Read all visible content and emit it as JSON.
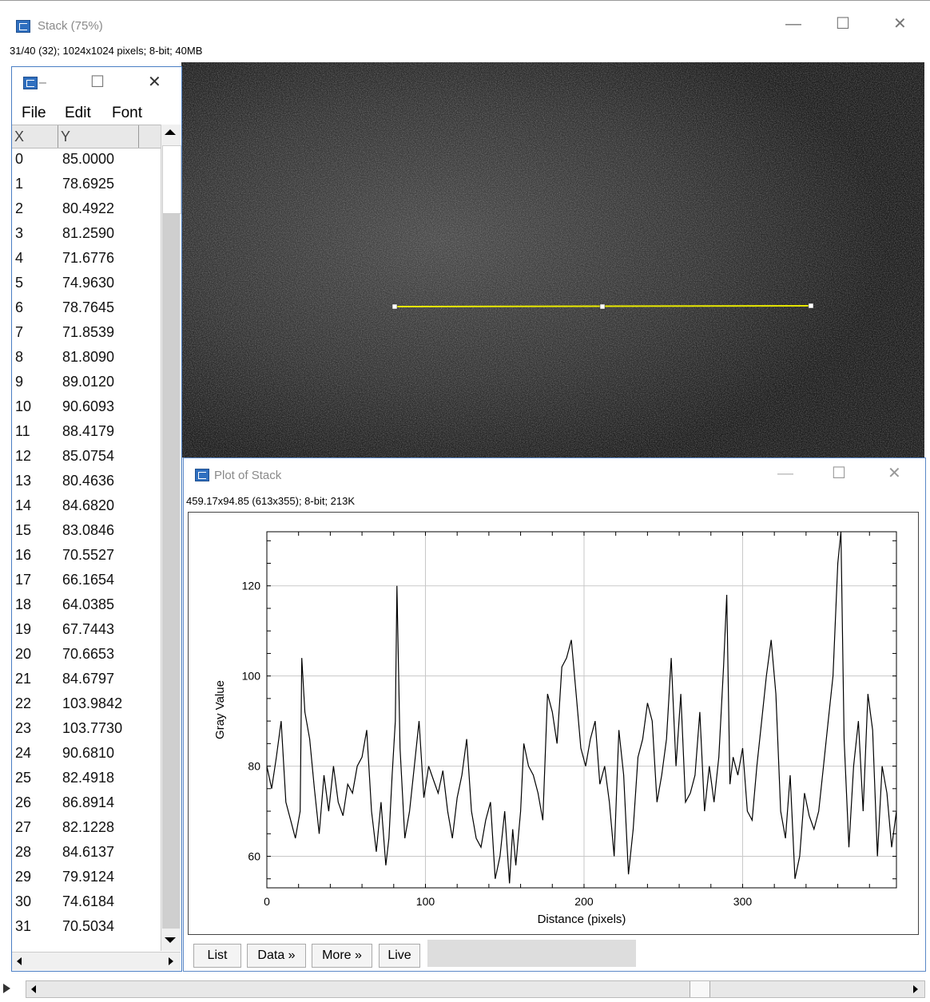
{
  "main_window": {
    "title": "Stack (75%)",
    "info": "31/40 (32); 1024x1024 pixels; 8-bit; 40MB"
  },
  "results_table": {
    "menu": [
      "File",
      "Edit",
      "Font"
    ],
    "columns": [
      "X",
      "Y"
    ],
    "rows": [
      [
        "0",
        "85.0000"
      ],
      [
        "1",
        "78.6925"
      ],
      [
        "2",
        "80.4922"
      ],
      [
        "3",
        "81.2590"
      ],
      [
        "4",
        "71.6776"
      ],
      [
        "5",
        "74.9630"
      ],
      [
        "6",
        "78.7645"
      ],
      [
        "7",
        "71.8539"
      ],
      [
        "8",
        "81.8090"
      ],
      [
        "9",
        "89.0120"
      ],
      [
        "10",
        "90.6093"
      ],
      [
        "11",
        "88.4179"
      ],
      [
        "12",
        "85.0754"
      ],
      [
        "13",
        "80.4636"
      ],
      [
        "14",
        "84.6820"
      ],
      [
        "15",
        "83.0846"
      ],
      [
        "16",
        "70.5527"
      ],
      [
        "17",
        "66.1654"
      ],
      [
        "18",
        "64.0385"
      ],
      [
        "19",
        "67.7443"
      ],
      [
        "20",
        "70.6653"
      ],
      [
        "21",
        "84.6797"
      ],
      [
        "22",
        "103.9842"
      ],
      [
        "23",
        "103.7730"
      ],
      [
        "24",
        "90.6810"
      ],
      [
        "25",
        "82.4918"
      ],
      [
        "26",
        "86.8914"
      ],
      [
        "27",
        "82.1228"
      ],
      [
        "28",
        "84.6137"
      ],
      [
        "29",
        "79.9124"
      ],
      [
        "30",
        "74.6184"
      ],
      [
        "31",
        "70.5034"
      ]
    ]
  },
  "plot_window": {
    "title": "Plot of Stack",
    "info": "459.17x94.85   (613x355); 8-bit; 213K",
    "buttons": [
      "List",
      "Data »",
      "More »",
      "Live"
    ]
  },
  "chart_data": {
    "type": "line",
    "xlabel": "Distance (pixels)",
    "ylabel": "Gray Value",
    "xlim": [
      0,
      397
    ],
    "ylim": [
      53,
      132
    ],
    "xticks": [
      0,
      100,
      200,
      300
    ],
    "yticks": [
      60,
      80,
      100,
      120
    ],
    "grid": true,
    "series": [
      {
        "x": [
          0,
          3,
          6,
          9,
          12,
          15,
          18,
          21,
          22,
          24,
          27,
          30,
          33,
          36,
          39,
          42,
          45,
          48,
          51,
          54,
          57,
          60,
          63,
          66,
          69,
          72,
          75,
          77,
          79,
          81,
          82,
          84,
          87,
          90,
          93,
          96,
          99,
          102,
          105,
          108,
          111,
          114,
          117,
          120,
          123,
          126,
          129,
          132,
          135,
          138,
          141,
          144,
          147,
          150,
          153,
          155,
          157,
          160,
          162,
          165,
          168,
          171,
          174,
          177,
          180,
          183,
          186,
          189,
          192,
          195,
          198,
          201,
          204,
          207,
          210,
          213,
          216,
          219,
          222,
          225,
          228,
          231,
          234,
          237,
          240,
          243,
          246,
          249,
          252,
          255,
          258,
          261,
          264,
          267,
          270,
          273,
          276,
          279,
          282,
          285,
          288,
          290,
          292,
          294,
          297,
          300,
          303,
          306,
          309,
          312,
          315,
          318,
          321,
          324,
          327,
          330,
          333,
          336,
          339,
          342,
          345,
          348,
          351,
          354,
          357,
          360,
          362,
          364,
          367,
          370,
          373,
          376,
          379,
          382,
          385,
          388,
          391,
          394,
          397
        ],
        "values": [
          80,
          75,
          82,
          90,
          72,
          68,
          64,
          70,
          104,
          92,
          86,
          75,
          65,
          78,
          70,
          80,
          72,
          69,
          76,
          74,
          80,
          82,
          88,
          70,
          61,
          72,
          58,
          64,
          78,
          90,
          120,
          84,
          64,
          70,
          80,
          90,
          73,
          80,
          77,
          74,
          79,
          70,
          64,
          73,
          78,
          86,
          70,
          64,
          62,
          68,
          72,
          55,
          60,
          70,
          54,
          66,
          58,
          70,
          85,
          80,
          78,
          74,
          68,
          96,
          92,
          85,
          102,
          104,
          108,
          96,
          84,
          80,
          86,
          90,
          76,
          80,
          72,
          60,
          88,
          78,
          56,
          66,
          82,
          86,
          94,
          90,
          72,
          78,
          86,
          104,
          80,
          96,
          72,
          74,
          78,
          92,
          70,
          80,
          72,
          82,
          102,
          118,
          76,
          82,
          78,
          84,
          70,
          68,
          80,
          90,
          100,
          108,
          96,
          70,
          64,
          78,
          55,
          60,
          74,
          69,
          66,
          70,
          80,
          90,
          100,
          125,
          132,
          86,
          62,
          80,
          90,
          70,
          96,
          88,
          60,
          80,
          74,
          62,
          70
        ]
      }
    ]
  }
}
